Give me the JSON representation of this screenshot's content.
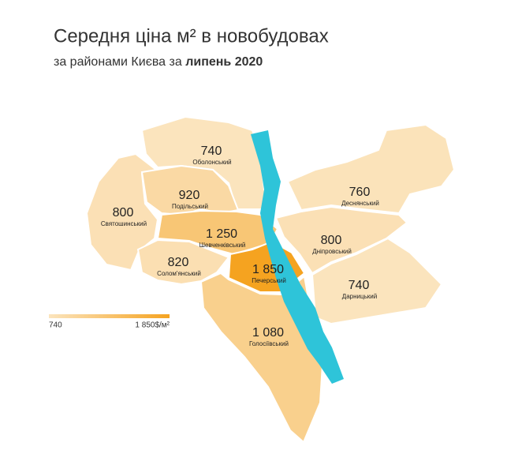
{
  "header": {
    "title": "Середня ціна м² в новобудовах",
    "subtitle_prefix": "за районами Києва за",
    "subtitle_bold": "липень 2020"
  },
  "colors": {
    "low": "#fbe4bd",
    "high": "#f5a320",
    "river": "#2ec4d9"
  },
  "districts": [
    {
      "name": "Оболонський",
      "value": 740,
      "label": "740"
    },
    {
      "name": "Святошинський",
      "value": 800,
      "label": "800"
    },
    {
      "name": "Подільський",
      "value": 920,
      "label": "920"
    },
    {
      "name": "Шевченківський",
      "value": 1250,
      "label": "1 250"
    },
    {
      "name": "Солом'янський",
      "value": 820,
      "label": "820"
    },
    {
      "name": "Печерський",
      "value": 1850,
      "label": "1 850"
    },
    {
      "name": "Голосіївський",
      "value": 1080,
      "label": "1 080"
    },
    {
      "name": "Деснянський",
      "value": 760,
      "label": "760"
    },
    {
      "name": "Дніпровський",
      "value": 800,
      "label": "800"
    },
    {
      "name": "Дарницький",
      "value": 740,
      "label": "740"
    }
  ],
  "legend": {
    "min": {
      "value": 740,
      "label": "740"
    },
    "max": {
      "value": 1850,
      "label": "1 850$/м²"
    }
  }
}
